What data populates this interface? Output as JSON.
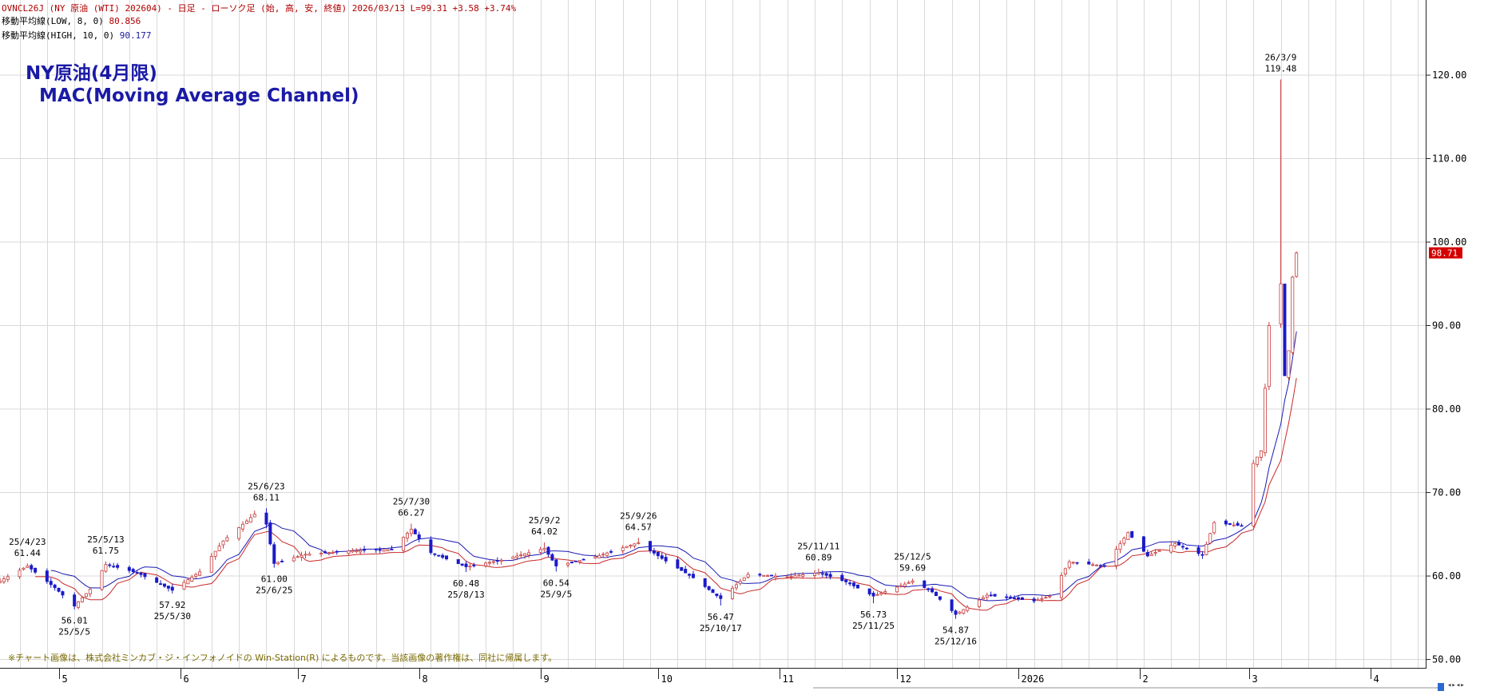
{
  "header": {
    "line1_symbol": "OVNCL26J (NY 原油 (WTI) 202604) - 日足 - ローソク足 (始, 高, 安, 終値)",
    "line1_date": "2026/03/13",
    "line1_last": "L=99.31",
    "line1_change": "+3.58",
    "line1_pct": "+3.74%",
    "line2_label": "移動平均線(LOW, 8, 0)",
    "line2_value": "80.856",
    "line3_label": "移動平均線(HIGH, 10, 0)",
    "line3_value": "90.177"
  },
  "title_overlay": {
    "line1": "NY原油(4月限)",
    "line2": "MAC(Moving Average Channel)"
  },
  "copyright": "※チャート画像は、株式会社ミンカブ・ジ・インフォノイドの Win-Station(R) によるものです。当該画像の著作権は、同社に帰属します。",
  "colors": {
    "up_candle": "#c83c3c",
    "down_candle": "#1a1ac8",
    "ma_high": "#1a1ab4",
    "ma_low": "#c82828",
    "grid": "#d9d9d9",
    "price_tag_bg": "#d40000"
  },
  "chart_data": {
    "type": "candlestick",
    "ylim": [
      49,
      129
    ],
    "y_ticks": [
      50,
      60,
      70,
      80,
      90,
      100,
      110,
      120
    ],
    "y_tick_labels": [
      "50.00",
      "60.00",
      "70.00",
      "80.00",
      "90.00",
      "100.00",
      "110.00",
      "120.00"
    ],
    "x_range": [
      "2025-04-16",
      "2026-04-15"
    ],
    "month_ticks": [
      {
        "date": "2025-05-01",
        "label": "5"
      },
      {
        "date": "2025-06-01",
        "label": "6"
      },
      {
        "date": "2025-07-01",
        "label": "7"
      },
      {
        "date": "2025-08-01",
        "label": "8"
      },
      {
        "date": "2025-09-01",
        "label": "9"
      },
      {
        "date": "2025-10-01",
        "label": "10"
      },
      {
        "date": "2025-11-01",
        "label": "11"
      },
      {
        "date": "2025-12-01",
        "label": "12"
      },
      {
        "date": "2026-01-01",
        "label": "2026"
      },
      {
        "date": "2026-02-01",
        "label": "2"
      },
      {
        "date": "2026-03-01",
        "label": "3"
      },
      {
        "date": "2026-04-01",
        "label": "4"
      }
    ],
    "current_price_label": "98.71",
    "current_price": 98.71,
    "price_anchors": [
      [
        "2025-04-16",
        59.4
      ],
      [
        "2025-04-23",
        61.2
      ],
      [
        "2025-04-30",
        58.6
      ],
      [
        "2025-05-05",
        56.4
      ],
      [
        "2025-05-09",
        58.4
      ],
      [
        "2025-05-13",
        61.4
      ],
      [
        "2025-05-21",
        60.4
      ],
      [
        "2025-05-30",
        58.3
      ],
      [
        "2025-06-06",
        60.5
      ],
      [
        "2025-06-12",
        64.2
      ],
      [
        "2025-06-20",
        67.4
      ],
      [
        "2025-06-23",
        66.2
      ],
      [
        "2025-06-25",
        61.5
      ],
      [
        "2025-07-03",
        62.6
      ],
      [
        "2025-07-14",
        63.0
      ],
      [
        "2025-07-25",
        63.2
      ],
      [
        "2025-07-30",
        65.6
      ],
      [
        "2025-08-04",
        62.8
      ],
      [
        "2025-08-13",
        61.1
      ],
      [
        "2025-08-22",
        61.9
      ],
      [
        "2025-09-02",
        63.3
      ],
      [
        "2025-09-05",
        61.2
      ],
      [
        "2025-09-15",
        62.3
      ],
      [
        "2025-09-26",
        64.0
      ],
      [
        "2025-10-03",
        61.8
      ],
      [
        "2025-10-10",
        59.8
      ],
      [
        "2025-10-17",
        57.3
      ],
      [
        "2025-10-24",
        60.2
      ],
      [
        "2025-11-03",
        59.9
      ],
      [
        "2025-11-11",
        60.4
      ],
      [
        "2025-11-18",
        59.3
      ],
      [
        "2025-11-25",
        57.6
      ],
      [
        "2025-12-05",
        59.4
      ],
      [
        "2025-12-10",
        58.1
      ],
      [
        "2025-12-16",
        55.4
      ],
      [
        "2025-12-24",
        57.7
      ],
      [
        "2026-01-05",
        57.0
      ],
      [
        "2026-01-09",
        57.6
      ],
      [
        "2026-01-14",
        61.7
      ],
      [
        "2026-01-23",
        61.2
      ],
      [
        "2026-01-29",
        65.2
      ],
      [
        "2026-02-03",
        62.4
      ],
      [
        "2026-02-10",
        63.9
      ],
      [
        "2026-02-17",
        62.5
      ],
      [
        "2026-02-20",
        66.4
      ],
      [
        "2026-02-27",
        66.0
      ],
      [
        "2026-03-02",
        73.5
      ],
      [
        "2026-03-04",
        75.0
      ],
      [
        "2026-03-06",
        90.0
      ],
      [
        "2026-03-09",
        95.0
      ],
      [
        "2026-03-10",
        84.0
      ],
      [
        "2026-03-11",
        87.0
      ],
      [
        "2026-03-12",
        95.8
      ],
      [
        "2026-03-13",
        98.7
      ]
    ],
    "annotations": [
      {
        "date": "2025-04-23",
        "value": 61.44,
        "line1": "25/4/23",
        "line2": "61.44",
        "pos": "above"
      },
      {
        "date": "2025-05-05",
        "value": 56.01,
        "line1": "56.01",
        "line2": "25/5/5",
        "pos": "below"
      },
      {
        "date": "2025-05-13",
        "value": 61.75,
        "line1": "25/5/13",
        "line2": "61.75",
        "pos": "above"
      },
      {
        "date": "2025-05-30",
        "value": 57.92,
        "line1": "57.92",
        "line2": "25/5/30",
        "pos": "below"
      },
      {
        "date": "2025-06-23",
        "value": 68.11,
        "line1": "25/6/23",
        "line2": "68.11",
        "pos": "above"
      },
      {
        "date": "2025-06-25",
        "value": 61.0,
        "line1": "61.00",
        "line2": "25/6/25",
        "pos": "below"
      },
      {
        "date": "2025-07-30",
        "value": 66.27,
        "line1": "25/7/30",
        "line2": "66.27",
        "pos": "above"
      },
      {
        "date": "2025-08-13",
        "value": 60.48,
        "line1": "60.48",
        "line2": "25/8/13",
        "pos": "below"
      },
      {
        "date": "2025-09-02",
        "value": 64.02,
        "line1": "25/9/2",
        "line2": "64.02",
        "pos": "above"
      },
      {
        "date": "2025-09-05",
        "value": 60.54,
        "line1": "60.54",
        "line2": "25/9/5",
        "pos": "below"
      },
      {
        "date": "2025-09-26",
        "value": 64.57,
        "line1": "25/9/26",
        "line2": "64.57",
        "pos": "above"
      },
      {
        "date": "2025-10-17",
        "value": 56.47,
        "line1": "56.47",
        "line2": "25/10/17",
        "pos": "below"
      },
      {
        "date": "2025-11-11",
        "value": 60.89,
        "line1": "25/11/11",
        "line2": "60.89",
        "pos": "above"
      },
      {
        "date": "2025-11-25",
        "value": 56.73,
        "line1": "56.73",
        "line2": "25/11/25",
        "pos": "below"
      },
      {
        "date": "2025-12-05",
        "value": 59.69,
        "line1": "25/12/5",
        "line2": "59.69",
        "pos": "above"
      },
      {
        "date": "2025-12-16",
        "value": 54.87,
        "line1": "54.87",
        "line2": "25/12/16",
        "pos": "below"
      },
      {
        "date": "2026-03-09",
        "value": 119.48,
        "line1": "26/3/9",
        "line2": "119.48",
        "pos": "above"
      }
    ]
  }
}
